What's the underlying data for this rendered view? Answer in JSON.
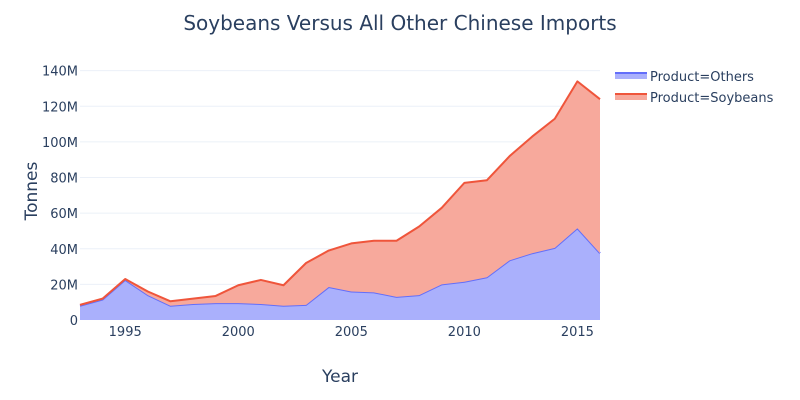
{
  "chart_data": {
    "type": "area",
    "title": "Soybeans Versus All Other Chinese Imports",
    "xlabel": "Year",
    "ylabel": "Tonnes",
    "xlim": [
      1993,
      2016
    ],
    "ylim": [
      0,
      146000000
    ],
    "x_ticks": [
      1995,
      2000,
      2005,
      2010,
      2015
    ],
    "y_ticks": [
      0,
      20000000,
      40000000,
      60000000,
      80000000,
      100000000,
      120000000,
      140000000
    ],
    "y_tick_labels": [
      "0",
      "20M",
      "40M",
      "60M",
      "80M",
      "100M",
      "120M",
      "140M"
    ],
    "grid": true,
    "stacked": true,
    "legend_position": "top-right",
    "x": [
      1993,
      1994,
      1995,
      1996,
      1997,
      1998,
      1999,
      2000,
      2001,
      2002,
      2003,
      2004,
      2005,
      2006,
      2007,
      2008,
      2009,
      2010,
      2011,
      2012,
      2013,
      2014,
      2015,
      2016
    ],
    "series": [
      {
        "name": "Product=Others",
        "line_color": "#636efa",
        "fill_color": "#aab0fc",
        "values": [
          8000000,
          11500000,
          22500000,
          14000000,
          8000000,
          9000000,
          9500000,
          9500000,
          9000000,
          8000000,
          8500000,
          18500000,
          16000000,
          15500000,
          13000000,
          14000000,
          20000000,
          21500000,
          24000000,
          33500000,
          37500000,
          40500000,
          51500000,
          37500000
        ]
      },
      {
        "name": "Product=Soybeans",
        "line_color": "#ef553b",
        "fill_color": "#f7a99c",
        "values": [
          500000,
          500000,
          500000,
          2000000,
          2500000,
          3000000,
          4000000,
          10000000,
          13500000,
          11500000,
          23500000,
          20500000,
          27000000,
          29000000,
          31500000,
          38500000,
          43000000,
          55500000,
          54500000,
          58500000,
          65500000,
          72500000,
          82500000,
          86500000
        ]
      }
    ]
  }
}
